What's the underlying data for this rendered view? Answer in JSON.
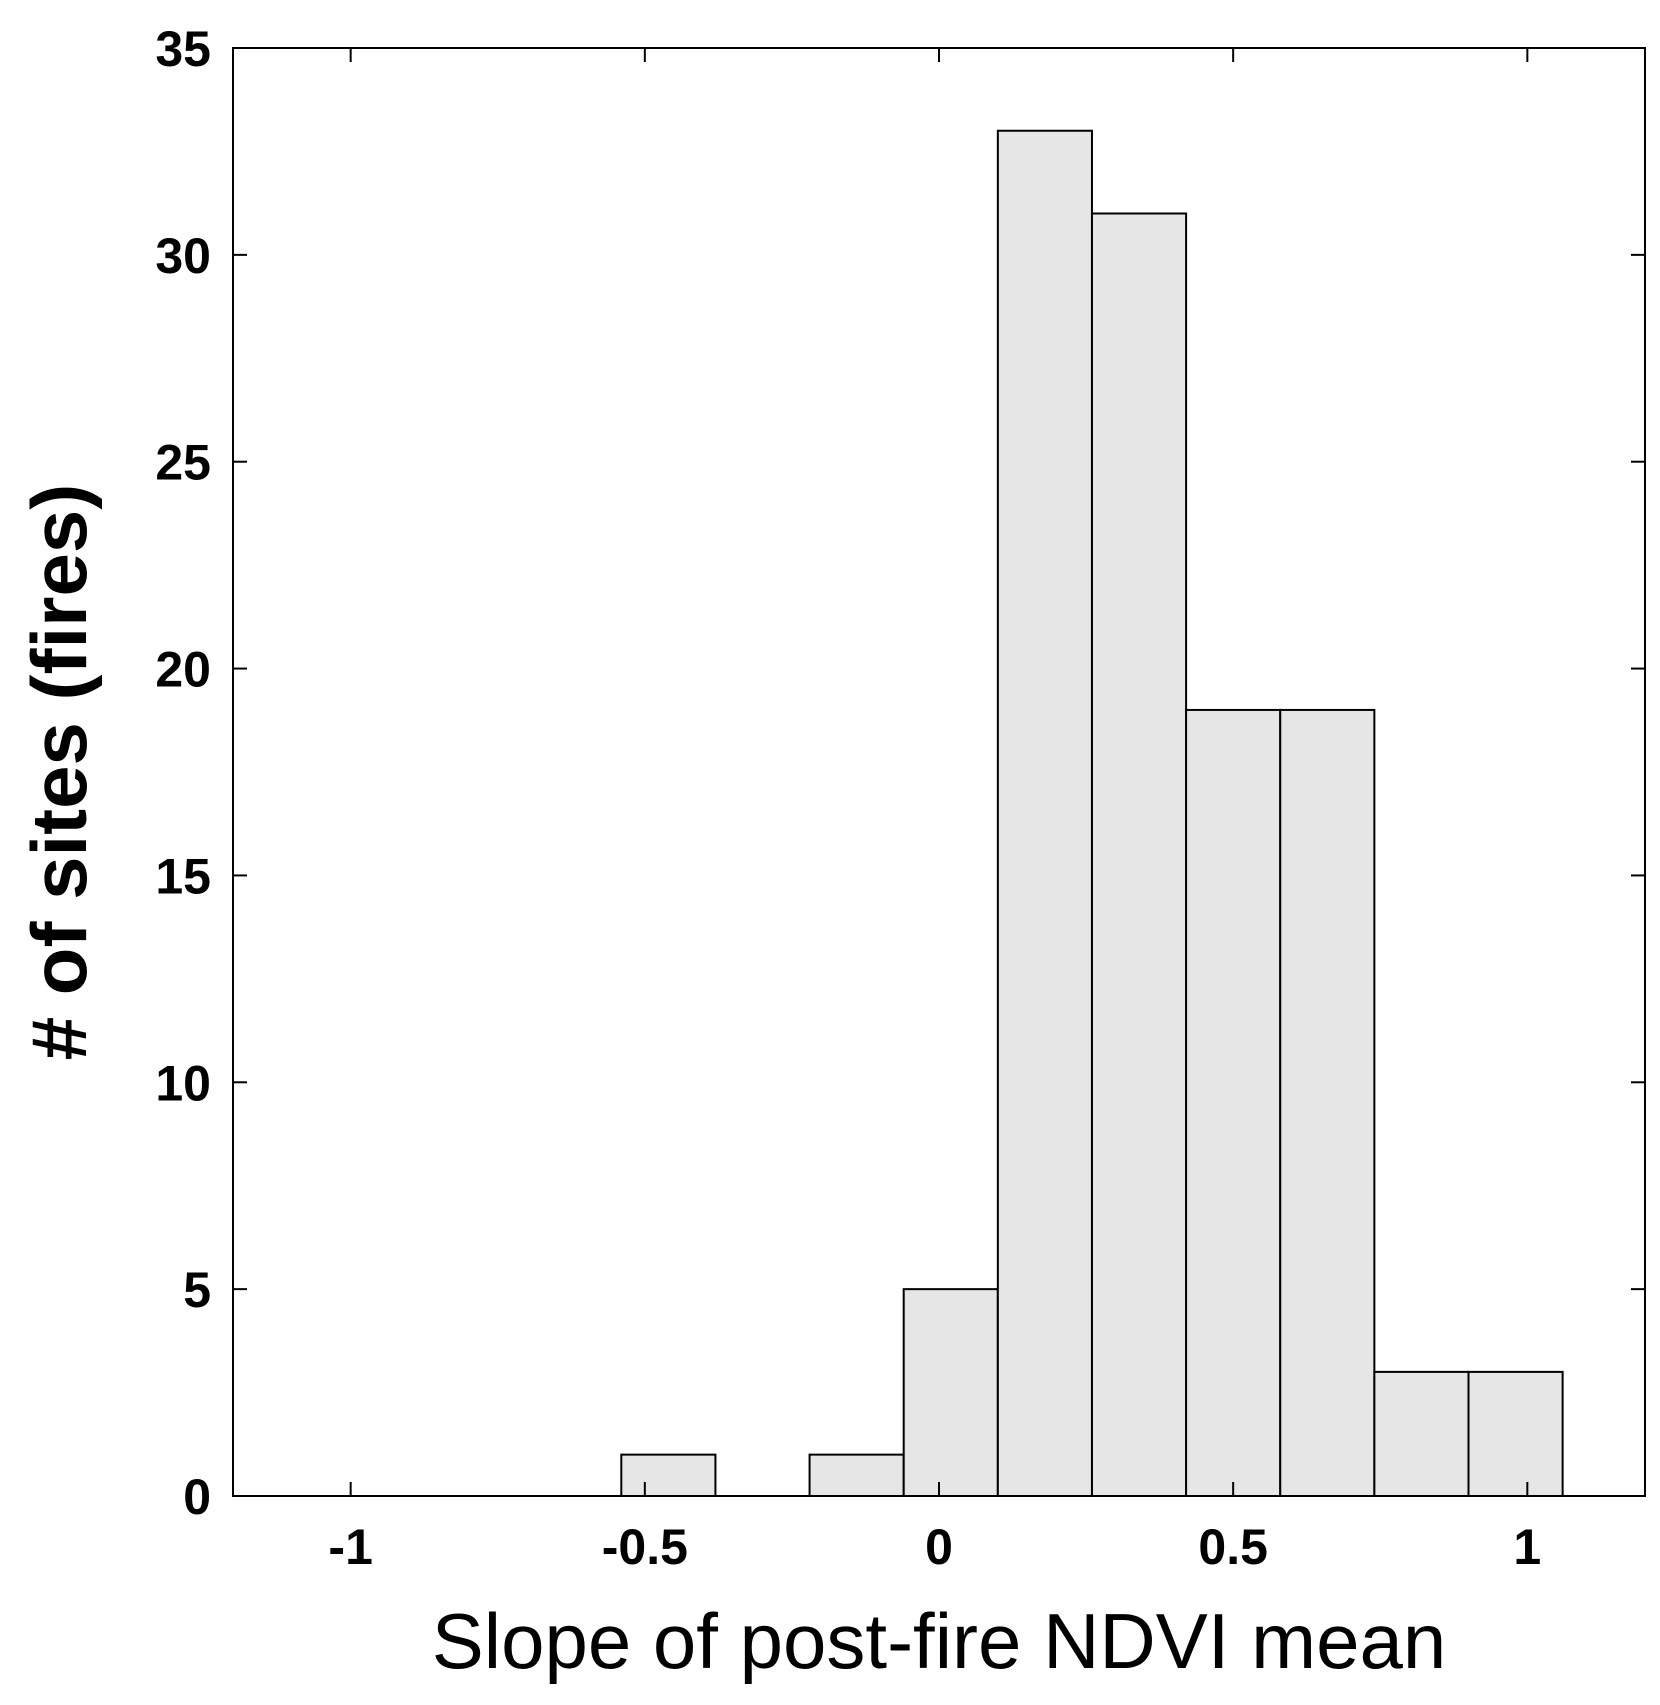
{
  "chart_data": {
    "type": "bar",
    "title": "",
    "xlabel": "Slope of post-fire NDVI mean",
    "ylabel": "# of sites (fires)",
    "xlim": [
      -1.2,
      1.2
    ],
    "ylim": [
      0,
      35
    ],
    "xticks": [
      "-1",
      "-0.5",
      "0",
      "0.5",
      "1"
    ],
    "xtick_values": [
      -1,
      -0.5,
      0,
      0.5,
      1
    ],
    "yticks": [
      "0",
      "5",
      "10",
      "15",
      "20",
      "25",
      "30",
      "35"
    ],
    "ytick_values": [
      0,
      5,
      10,
      15,
      20,
      25,
      30,
      35
    ],
    "grid": false,
    "bar_color": "#e6e6e6",
    "edge_color": "#000000",
    "bins": [
      {
        "start": -0.54,
        "end": -0.38,
        "count": 1
      },
      {
        "start": -0.22,
        "end": -0.06,
        "count": 1
      },
      {
        "start": -0.06,
        "end": 0.1,
        "count": 5
      },
      {
        "start": 0.1,
        "end": 0.26,
        "count": 33
      },
      {
        "start": 0.26,
        "end": 0.42,
        "count": 31
      },
      {
        "start": 0.42,
        "end": 0.58,
        "count": 19
      },
      {
        "start": 0.58,
        "end": 0.74,
        "count": 19
      },
      {
        "start": 0.74,
        "end": 0.9,
        "count": 3
      },
      {
        "start": 0.9,
        "end": 1.06,
        "count": 3
      }
    ]
  }
}
